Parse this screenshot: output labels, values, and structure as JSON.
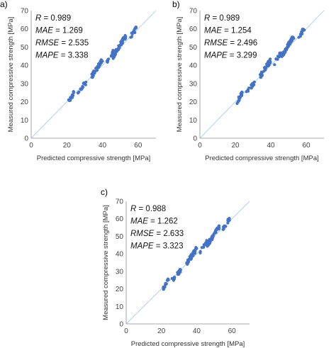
{
  "figure": {
    "panel_labels": [
      "a)",
      "b)",
      "c)"
    ]
  },
  "colors": {
    "points": "#4472C4",
    "identity_line": "#9DC3E6",
    "axis": "#8c8c8c"
  },
  "chart_data": [
    {
      "type": "scatter",
      "panel": "a)",
      "xlabel": "Predicted compressive strength [MPa]",
      "ylabel": "Measured compressive strength [MPa]",
      "xlim": [
        0,
        70
      ],
      "ylim": [
        0,
        70
      ],
      "xticks": [
        "0",
        "20",
        "40",
        "60"
      ],
      "yticks": [
        "0",
        "10",
        "20",
        "30",
        "40",
        "50",
        "60",
        "70"
      ],
      "grid": false,
      "identity_line": true,
      "stats": [
        {
          "name": "R",
          "value": " = 0.989"
        },
        {
          "name": "MAE",
          "value": " = 1.269"
        },
        {
          "name": "RMSE",
          "value": " = 2.535"
        },
        {
          "name": "MAPE",
          "value": " = 3.338"
        }
      ],
      "clusters": [
        {
          "x": [
            21,
            24
          ],
          "y": [
            20,
            25
          ],
          "n": 16
        },
        {
          "x": [
            26,
            31
          ],
          "y": [
            25,
            31
          ],
          "n": 16
        },
        {
          "x": [
            34,
            40
          ],
          "y": [
            34,
            43
          ],
          "n": 38
        },
        {
          "x": [
            42,
            46
          ],
          "y": [
            41,
            47
          ],
          "n": 14
        },
        {
          "x": [
            46,
            53
          ],
          "y": [
            45,
            56
          ],
          "n": 50
        },
        {
          "x": [
            55,
            59
          ],
          "y": [
            55,
            60
          ],
          "n": 14
        }
      ]
    },
    {
      "type": "scatter",
      "panel": "b)",
      "xlabel": "Predicted compressive strength [MPa]",
      "ylabel": "Measured compressive strength [MPa]",
      "xlim": [
        0,
        70
      ],
      "ylim": [
        0,
        70
      ],
      "xticks": [
        "0",
        "20",
        "40",
        "60"
      ],
      "yticks": [
        "0",
        "10",
        "20",
        "30",
        "40",
        "50",
        "60",
        "70"
      ],
      "grid": false,
      "identity_line": true,
      "stats": [
        {
          "name": "R",
          "value": " = 0.989"
        },
        {
          "name": "MAE",
          "value": " = 1.254"
        },
        {
          "name": "RMSE",
          "value": " = 2.496"
        },
        {
          "name": "MAPE",
          "value": " = 3.299"
        }
      ],
      "clusters": [
        {
          "x": [
            21,
            24
          ],
          "y": [
            20,
            25
          ],
          "n": 16
        },
        {
          "x": [
            26,
            31
          ],
          "y": [
            25,
            31
          ],
          "n": 16
        },
        {
          "x": [
            34,
            40
          ],
          "y": [
            34,
            43
          ],
          "n": 38
        },
        {
          "x": [
            42,
            46
          ],
          "y": [
            41,
            47
          ],
          "n": 14
        },
        {
          "x": [
            46,
            53
          ],
          "y": [
            45,
            56
          ],
          "n": 50
        },
        {
          "x": [
            55,
            59
          ],
          "y": [
            55,
            60
          ],
          "n": 14
        }
      ]
    },
    {
      "type": "scatter",
      "panel": "c)",
      "xlabel": "Predicted compressive strength [MPa]",
      "ylabel": "Measured compressive strength [MPa]",
      "xlim": [
        0,
        70
      ],
      "ylim": [
        0,
        70
      ],
      "xticks": [
        "0",
        "20",
        "40",
        "60"
      ],
      "yticks": [
        "0",
        "10",
        "20",
        "30",
        "40",
        "50",
        "60",
        "70"
      ],
      "grid": false,
      "identity_line": true,
      "stats": [
        {
          "name": "R",
          "value": " = 0.988"
        },
        {
          "name": "MAE",
          "value": " = 1.262"
        },
        {
          "name": "RMSE",
          "value": " = 2.633"
        },
        {
          "name": "MAPE",
          "value": " = 3.323"
        }
      ],
      "clusters": [
        {
          "x": [
            21,
            24
          ],
          "y": [
            20,
            25
          ],
          "n": 16
        },
        {
          "x": [
            26,
            31
          ],
          "y": [
            25,
            31
          ],
          "n": 16
        },
        {
          "x": [
            34,
            40
          ],
          "y": [
            34,
            43
          ],
          "n": 38
        },
        {
          "x": [
            42,
            46
          ],
          "y": [
            41,
            47
          ],
          "n": 14
        },
        {
          "x": [
            46,
            53
          ],
          "y": [
            45,
            56
          ],
          "n": 50
        },
        {
          "x": [
            55,
            59
          ],
          "y": [
            55,
            60
          ],
          "n": 14
        }
      ]
    }
  ]
}
